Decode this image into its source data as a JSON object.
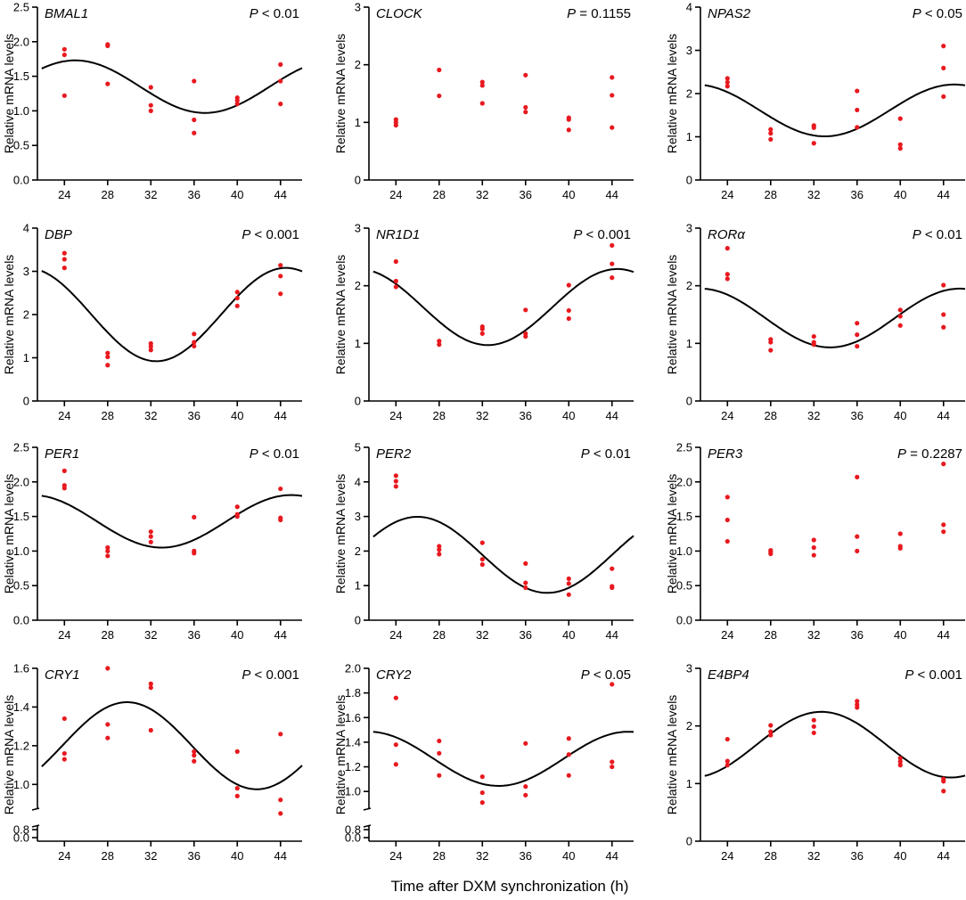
{
  "figure": {
    "xlabel": "Time after DXM synchronization (h)",
    "ylabel": "Relative mRNA levels",
    "colors": {
      "points": "#e8191f",
      "curve": "#000000",
      "axis": "#000000"
    }
  },
  "chart_data": [
    {
      "type": "scatter",
      "title": "BMAL1",
      "p_letter": "P",
      "p_rest": " < 0.01",
      "xlim": [
        21.5,
        46
      ],
      "ylim": [
        0,
        2.5
      ],
      "x_ticks": [
        24,
        28,
        32,
        36,
        40,
        44
      ],
      "y_ticks": [
        0.0,
        0.5,
        1.0,
        1.5,
        2.0,
        2.5
      ],
      "y_tick_labels": [
        "0.0",
        "0.5",
        "1.0",
        "1.5",
        "2.0",
        "2.5"
      ],
      "points": [
        [
          24,
          1.89
        ],
        [
          24,
          1.81
        ],
        [
          24,
          1.22
        ],
        [
          28,
          1.96
        ],
        [
          28,
          1.94
        ],
        [
          28,
          1.39
        ],
        [
          32,
          1.34
        ],
        [
          32,
          1.08
        ],
        [
          32,
          1.0
        ],
        [
          36,
          1.43
        ],
        [
          36,
          0.87
        ],
        [
          36,
          0.68
        ],
        [
          40,
          1.19
        ],
        [
          40,
          1.15
        ],
        [
          40,
          1.1
        ],
        [
          44,
          1.67
        ],
        [
          44,
          1.43
        ],
        [
          44,
          1.1
        ]
      ],
      "fit": {
        "mesor": 1.35,
        "amplitude": 0.38,
        "period": 24,
        "peak_time": 25
      }
    },
    {
      "type": "scatter",
      "title": "CLOCK",
      "p_letter": "P",
      "p_rest": " = 0.1155",
      "xlim": [
        21.5,
        46
      ],
      "ylim": [
        0,
        3
      ],
      "x_ticks": [
        24,
        28,
        32,
        36,
        40,
        44
      ],
      "y_ticks": [
        0,
        1,
        2,
        3
      ],
      "y_tick_labels": [
        "0",
        "1",
        "2",
        "3"
      ],
      "points": [
        [
          24,
          1.05
        ],
        [
          24,
          1.0
        ],
        [
          24,
          0.95
        ],
        [
          28,
          1.91
        ],
        [
          28,
          1.46
        ],
        [
          32,
          1.7
        ],
        [
          32,
          1.64
        ],
        [
          32,
          1.33
        ],
        [
          36,
          1.82
        ],
        [
          36,
          1.26
        ],
        [
          36,
          1.18
        ],
        [
          40,
          1.08
        ],
        [
          40,
          1.05
        ],
        [
          40,
          0.87
        ],
        [
          44,
          1.78
        ],
        [
          44,
          1.47
        ],
        [
          44,
          0.91
        ]
      ],
      "fit": null
    },
    {
      "type": "scatter",
      "title": "NPAS2",
      "p_letter": "P",
      "p_rest": " < 0.05",
      "xlim": [
        21.5,
        46
      ],
      "ylim": [
        0,
        4
      ],
      "x_ticks": [
        24,
        28,
        32,
        36,
        40,
        44
      ],
      "y_ticks": [
        0,
        1,
        2,
        3,
        4
      ],
      "y_tick_labels": [
        "0",
        "1",
        "2",
        "3",
        "4"
      ],
      "points": [
        [
          24,
          2.35
        ],
        [
          24,
          2.26
        ],
        [
          24,
          2.17
        ],
        [
          28,
          1.17
        ],
        [
          28,
          1.08
        ],
        [
          28,
          0.94
        ],
        [
          32,
          1.26
        ],
        [
          32,
          1.21
        ],
        [
          32,
          0.85
        ],
        [
          36,
          2.06
        ],
        [
          36,
          1.62
        ],
        [
          36,
          1.22
        ],
        [
          40,
          1.42
        ],
        [
          40,
          0.82
        ],
        [
          40,
          0.73
        ],
        [
          44,
          3.1
        ],
        [
          44,
          2.59
        ],
        [
          44,
          1.93
        ]
      ],
      "fit": {
        "mesor": 1.61,
        "amplitude": 0.6,
        "period": 24,
        "peak_time": 21
      }
    },
    {
      "type": "scatter",
      "title": "DBP",
      "p_letter": "P",
      "p_rest": " < 0.001",
      "xlim": [
        21.5,
        46
      ],
      "ylim": [
        0,
        4
      ],
      "x_ticks": [
        24,
        28,
        32,
        36,
        40,
        44
      ],
      "y_ticks": [
        0,
        1,
        2,
        3,
        4
      ],
      "y_tick_labels": [
        "0",
        "1",
        "2",
        "3",
        "4"
      ],
      "points": [
        [
          24,
          3.42
        ],
        [
          24,
          3.28
        ],
        [
          24,
          3.08
        ],
        [
          28,
          1.11
        ],
        [
          28,
          1.02
        ],
        [
          28,
          0.83
        ],
        [
          32,
          1.33
        ],
        [
          32,
          1.26
        ],
        [
          32,
          1.18
        ],
        [
          36,
          1.55
        ],
        [
          36,
          1.36
        ],
        [
          36,
          1.27
        ],
        [
          40,
          2.52
        ],
        [
          40,
          2.38
        ],
        [
          40,
          2.2
        ],
        [
          44,
          3.14
        ],
        [
          44,
          2.89
        ],
        [
          44,
          2.48
        ]
      ],
      "fit": {
        "mesor": 2.0,
        "amplitude": 1.08,
        "period": 24,
        "peak_time": 20.5
      }
    },
    {
      "type": "scatter",
      "title": "NR1D1",
      "p_letter": "P",
      "p_rest": " < 0.001",
      "xlim": [
        21.5,
        46
      ],
      "ylim": [
        0,
        3
      ],
      "x_ticks": [
        24,
        28,
        32,
        36,
        40,
        44
      ],
      "y_ticks": [
        0,
        1,
        2,
        3
      ],
      "y_tick_labels": [
        "0",
        "1",
        "2",
        "3"
      ],
      "points": [
        [
          24,
          2.42
        ],
        [
          24,
          2.08
        ],
        [
          24,
          1.98
        ],
        [
          28,
          1.04
        ],
        [
          28,
          0.98
        ],
        [
          32,
          1.29
        ],
        [
          32,
          1.25
        ],
        [
          32,
          1.17
        ],
        [
          36,
          1.58
        ],
        [
          36,
          1.17
        ],
        [
          36,
          1.12
        ],
        [
          40,
          2.01
        ],
        [
          40,
          1.57
        ],
        [
          40,
          1.43
        ],
        [
          44,
          2.7
        ],
        [
          44,
          2.38
        ],
        [
          44,
          2.14
        ]
      ],
      "fit": {
        "mesor": 1.63,
        "amplitude": 0.66,
        "period": 24,
        "peak_time": 20.5
      }
    },
    {
      "type": "scatter",
      "title": "RORα",
      "p_letter": "P",
      "p_rest": " < 0.01",
      "xlim": [
        21.5,
        46
      ],
      "ylim": [
        0,
        3
      ],
      "x_ticks": [
        24,
        28,
        32,
        36,
        40,
        44
      ],
      "y_ticks": [
        0,
        1,
        2,
        3
      ],
      "y_tick_labels": [
        "0",
        "1",
        "2",
        "3"
      ],
      "points": [
        [
          24,
          2.65
        ],
        [
          24,
          2.2
        ],
        [
          24,
          2.12
        ],
        [
          28,
          1.07
        ],
        [
          28,
          1.02
        ],
        [
          28,
          0.88
        ],
        [
          32,
          1.12
        ],
        [
          32,
          1.02
        ],
        [
          32,
          0.98
        ],
        [
          36,
          1.35
        ],
        [
          36,
          1.15
        ],
        [
          36,
          0.95
        ],
        [
          40,
          1.58
        ],
        [
          40,
          1.47
        ],
        [
          40,
          1.31
        ],
        [
          44,
          2.01
        ],
        [
          44,
          1.5
        ],
        [
          44,
          1.28
        ]
      ],
      "fit": {
        "mesor": 1.44,
        "amplitude": 0.51,
        "period": 24,
        "peak_time": 21.5
      }
    },
    {
      "type": "scatter",
      "title": "PER1",
      "p_letter": "P",
      "p_rest": " < 0.01",
      "xlim": [
        21.5,
        46
      ],
      "ylim": [
        0,
        2.5
      ],
      "x_ticks": [
        24,
        28,
        32,
        36,
        40,
        44
      ],
      "y_ticks": [
        0.0,
        0.5,
        1.0,
        1.5,
        2.0,
        2.5
      ],
      "y_tick_labels": [
        "0.0",
        "0.5",
        "1.0",
        "1.5",
        "2.0",
        "2.5"
      ],
      "points": [
        [
          24,
          2.16
        ],
        [
          24,
          1.95
        ],
        [
          24,
          1.91
        ],
        [
          28,
          1.05
        ],
        [
          28,
          1.0
        ],
        [
          28,
          0.93
        ],
        [
          32,
          1.28
        ],
        [
          32,
          1.21
        ],
        [
          32,
          1.13
        ],
        [
          36,
          1.49
        ],
        [
          36,
          1.0
        ],
        [
          36,
          0.97
        ],
        [
          40,
          1.64
        ],
        [
          40,
          1.53
        ],
        [
          40,
          1.5
        ],
        [
          44,
          1.9
        ],
        [
          44,
          1.48
        ],
        [
          44,
          1.45
        ]
      ],
      "fit": {
        "mesor": 1.43,
        "amplitude": 0.38,
        "period": 24,
        "peak_time": 21
      }
    },
    {
      "type": "scatter",
      "title": "PER2",
      "p_letter": "P",
      "p_rest": " < 0.01",
      "xlim": [
        21.5,
        46
      ],
      "ylim": [
        0,
        5
      ],
      "x_ticks": [
        24,
        28,
        32,
        36,
        40,
        44
      ],
      "y_ticks": [
        0,
        1,
        2,
        3,
        4,
        5
      ],
      "y_tick_labels": [
        "0",
        "1",
        "2",
        "3",
        "4",
        "5"
      ],
      "points": [
        [
          24,
          4.18
        ],
        [
          24,
          4.02
        ],
        [
          24,
          3.87
        ],
        [
          28,
          2.14
        ],
        [
          28,
          2.04
        ],
        [
          28,
          1.91
        ],
        [
          32,
          2.24
        ],
        [
          32,
          1.76
        ],
        [
          32,
          1.61
        ],
        [
          36,
          1.64
        ],
        [
          36,
          1.08
        ],
        [
          36,
          0.94
        ],
        [
          40,
          1.2
        ],
        [
          40,
          1.06
        ],
        [
          40,
          0.74
        ],
        [
          44,
          1.49
        ],
        [
          44,
          0.98
        ],
        [
          44,
          0.94
        ]
      ],
      "fit": {
        "mesor": 1.89,
        "amplitude": 1.1,
        "period": 24,
        "peak_time": 26
      }
    },
    {
      "type": "scatter",
      "title": "PER3",
      "p_letter": "P",
      "p_rest": " = 0.2287",
      "xlim": [
        21.5,
        46
      ],
      "ylim": [
        0,
        2.5
      ],
      "x_ticks": [
        24,
        28,
        32,
        36,
        40,
        44
      ],
      "y_ticks": [
        0.0,
        0.5,
        1.0,
        1.5,
        2.0,
        2.5
      ],
      "y_tick_labels": [
        "0.0",
        "0.5",
        "1.0",
        "1.5",
        "2.0",
        "2.5"
      ],
      "points": [
        [
          24,
          1.78
        ],
        [
          24,
          1.45
        ],
        [
          24,
          1.14
        ],
        [
          28,
          1.01
        ],
        [
          28,
          0.99
        ],
        [
          28,
          0.96
        ],
        [
          32,
          1.16
        ],
        [
          32,
          1.05
        ],
        [
          32,
          0.94
        ],
        [
          36,
          2.07
        ],
        [
          36,
          1.21
        ],
        [
          36,
          1.0
        ],
        [
          40,
          1.25
        ],
        [
          40,
          1.07
        ],
        [
          40,
          1.04
        ],
        [
          44,
          2.26
        ],
        [
          44,
          1.38
        ],
        [
          44,
          1.28
        ]
      ],
      "fit": null
    },
    {
      "type": "scatter",
      "title": "CRY1",
      "p_letter": "P",
      "p_rest": " < 0.001",
      "xlim": [
        21.5,
        46
      ],
      "ylim": [
        0,
        1.6
      ],
      "y_axis_break": [
        0.8,
        0.9
      ],
      "x_ticks": [
        24,
        28,
        32,
        36,
        40,
        44
      ],
      "y_ticks": [
        0.0,
        0.8,
        1.0,
        1.2,
        1.4,
        1.6
      ],
      "y_tick_labels": [
        "0.0",
        "0.8",
        "1.0",
        "1.2",
        "1.4",
        "1.6"
      ],
      "points": [
        [
          24,
          1.34
        ],
        [
          24,
          1.16
        ],
        [
          24,
          1.13
        ],
        [
          28,
          1.6
        ],
        [
          28,
          1.31
        ],
        [
          28,
          1.24
        ],
        [
          32,
          1.52
        ],
        [
          32,
          1.5
        ],
        [
          32,
          1.28
        ],
        [
          36,
          1.17
        ],
        [
          36,
          1.15
        ],
        [
          36,
          1.12
        ],
        [
          40,
          1.17
        ],
        [
          40,
          0.98
        ],
        [
          40,
          0.94
        ],
        [
          44,
          1.26
        ],
        [
          44,
          0.92
        ],
        [
          44,
          0.85
        ]
      ],
      "fit": {
        "mesor": 1.2,
        "amplitude": 0.225,
        "period": 24,
        "peak_time": 29.8
      }
    },
    {
      "type": "scatter",
      "title": "CRY2",
      "p_letter": "P",
      "p_rest": " < 0.05",
      "xlim": [
        21.5,
        46
      ],
      "ylim": [
        0,
        2.0
      ],
      "y_axis_break": [
        0.8,
        0.9
      ],
      "x_ticks": [
        24,
        28,
        32,
        36,
        40,
        44
      ],
      "y_ticks": [
        0.0,
        0.8,
        1.0,
        1.2,
        1.4,
        1.6,
        1.8,
        2.0
      ],
      "y_tick_labels": [
        "0.0",
        "0.8",
        "1.0",
        "1.2",
        "1.4",
        "1.6",
        "1.8",
        "2.0"
      ],
      "points": [
        [
          24,
          1.76
        ],
        [
          24,
          1.38
        ],
        [
          24,
          1.22
        ],
        [
          28,
          1.41
        ],
        [
          28,
          1.31
        ],
        [
          28,
          1.13
        ],
        [
          32,
          1.12
        ],
        [
          32,
          0.99
        ],
        [
          32,
          0.91
        ],
        [
          36,
          1.39
        ],
        [
          36,
          1.04
        ],
        [
          36,
          0.97
        ],
        [
          40,
          1.43
        ],
        [
          40,
          1.3
        ],
        [
          40,
          1.13
        ],
        [
          44,
          1.87
        ],
        [
          44,
          1.24
        ],
        [
          44,
          1.2
        ]
      ],
      "fit": {
        "mesor": 1.265,
        "amplitude": 0.22,
        "period": 24,
        "peak_time": 45.5
      }
    },
    {
      "type": "scatter",
      "title": "E4BP4",
      "p_letter": "P",
      "p_rest": " < 0.001",
      "xlim": [
        21.5,
        46
      ],
      "ylim": [
        0,
        3
      ],
      "x_ticks": [
        24,
        28,
        32,
        36,
        40,
        44
      ],
      "y_ticks": [
        0,
        1,
        2,
        3
      ],
      "y_tick_labels": [
        "0",
        "1",
        "2",
        "3"
      ],
      "points": [
        [
          24,
          1.77
        ],
        [
          24,
          1.39
        ],
        [
          24,
          1.32
        ],
        [
          28,
          2.01
        ],
        [
          28,
          1.9
        ],
        [
          28,
          1.84
        ],
        [
          32,
          2.1
        ],
        [
          32,
          1.99
        ],
        [
          32,
          1.88
        ],
        [
          36,
          2.43
        ],
        [
          36,
          2.37
        ],
        [
          36,
          2.32
        ],
        [
          40,
          1.44
        ],
        [
          40,
          1.38
        ],
        [
          40,
          1.32
        ],
        [
          44,
          1.08
        ],
        [
          44,
          1.04
        ],
        [
          44,
          0.87
        ]
      ],
      "fit": {
        "mesor": 1.675,
        "amplitude": 0.57,
        "period": 24,
        "peak_time": 32.7
      }
    }
  ]
}
